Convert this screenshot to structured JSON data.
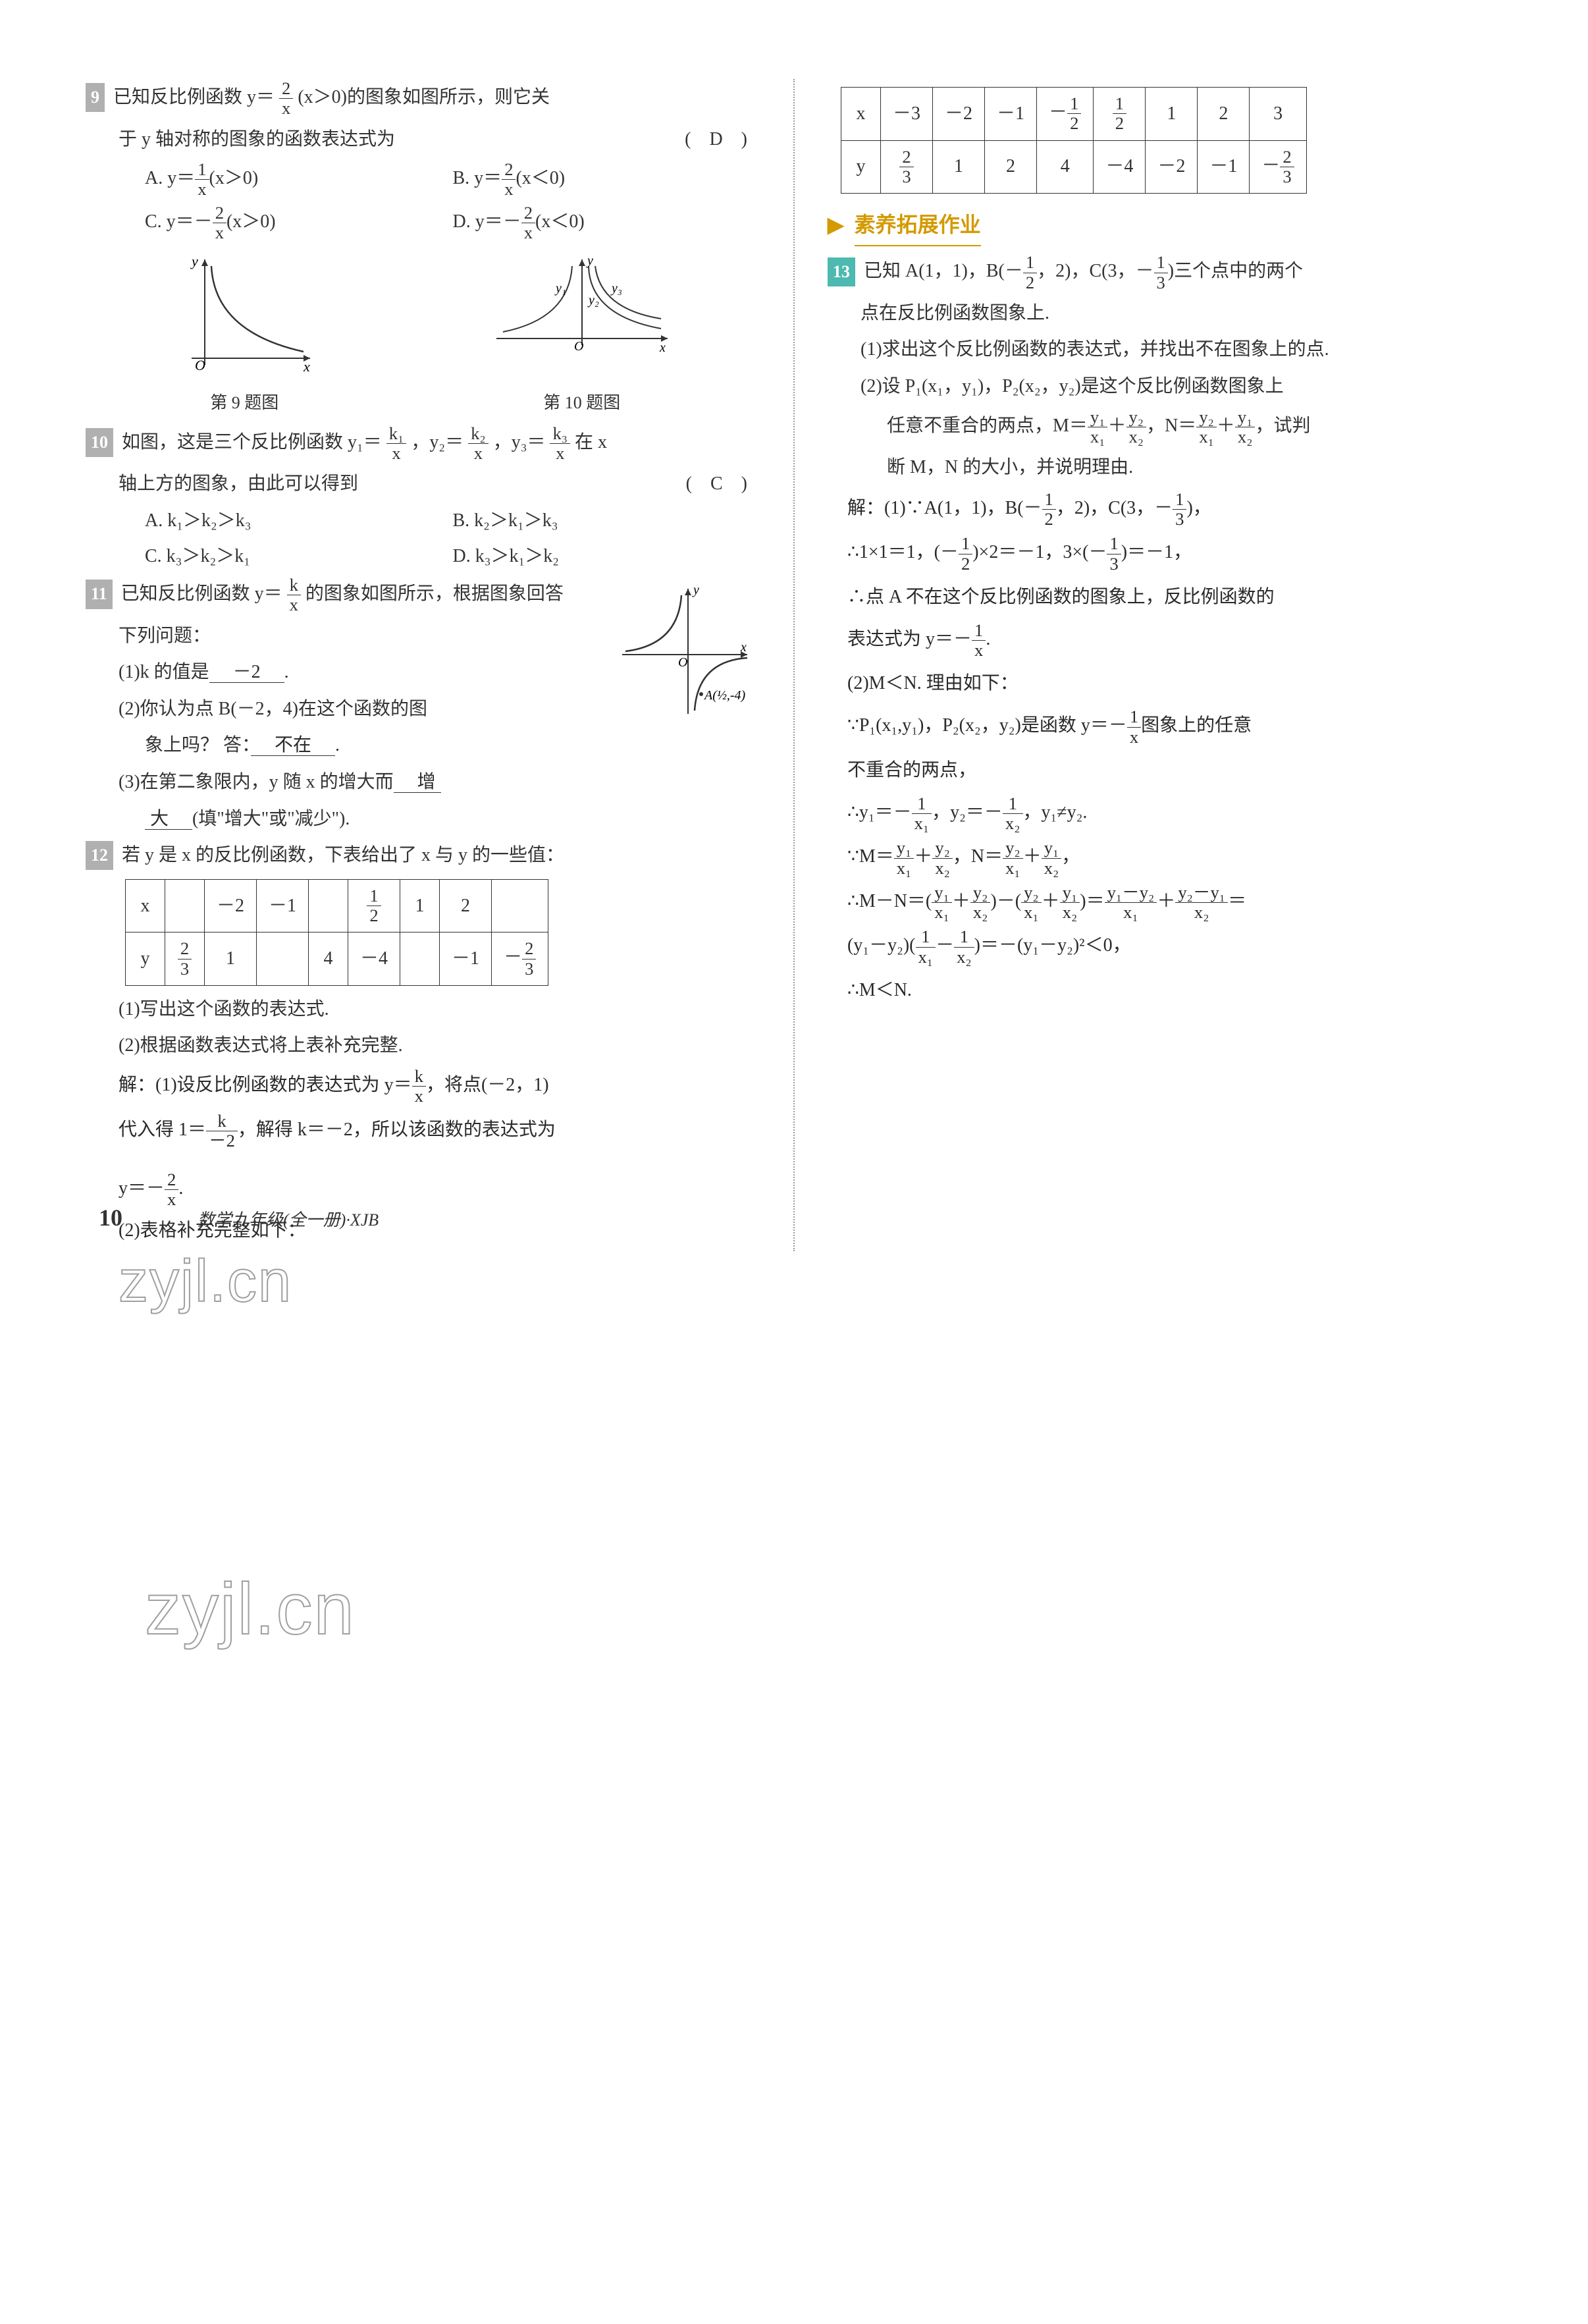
{
  "left": {
    "q9": {
      "num": "9",
      "text1": "已知反比例函数 y＝",
      "frac1": {
        "n": "2",
        "d": "x"
      },
      "text2": "(x＞0)的图象如图所示，则它关",
      "text3": "于 y 轴对称的图象的函数表达式为",
      "ans": "(　D　)",
      "opts": [
        {
          "l": "A. y＝",
          "f": {
            "n": "1",
            "d": "x"
          },
          "t": "(x＞0)"
        },
        {
          "l": "B. y＝",
          "f": {
            "n": "2",
            "d": "x"
          },
          "t": "(x＜0)"
        },
        {
          "l": "C. y＝－",
          "f": {
            "n": "2",
            "d": "x"
          },
          "t": "(x＞0)"
        },
        {
          "l": "D. y＝－",
          "f": {
            "n": "2",
            "d": "x"
          },
          "t": "(x＜0)"
        }
      ],
      "figcap1": "第 9 题图",
      "figcap2": "第 10 题图"
    },
    "q10": {
      "num": "10",
      "text1": "如图，这是三个反比例函数 y₁＝",
      "f1": {
        "n": "k₁",
        "d": "x"
      },
      "text2": "，y₂＝",
      "f2": {
        "n": "k₂",
        "d": "x"
      },
      "text3": "，y₃＝",
      "f3": {
        "n": "k₃",
        "d": "x"
      },
      "text4": "在 x",
      "text5": "轴上方的图象，由此可以得到",
      "ans": "(　C　)",
      "opts": [
        "A. k₁＞k₂＞k₃",
        "B. k₂＞k₁＞k₃",
        "C. k₃＞k₂＞k₁",
        "D. k₃＞k₁＞k₂"
      ]
    },
    "q11": {
      "num": "11",
      "text1": "已知反比例函数 y＝",
      "f": {
        "n": "k",
        "d": "x"
      },
      "text2": "的图象如图所示，根据图象回答",
      "text3": "下列问题：",
      "sub1a": "(1)k 的值是",
      "sub1ans": "　－2　",
      "sub1b": ".",
      "sub2a": "(2)你认为点 B(－2，4)在这个函数的图",
      "sub2b": "象上吗？ 答：",
      "sub2ans": "　不在　",
      "sub2c": ".",
      "sub3a": "(3)在第二象限内，y 随 x 的增大而",
      "sub3ans1": "　增",
      "sub3ans2": "大　",
      "sub3b": "(填\"增大\"或\"减少\").",
      "figlabel": "A(½,-4)"
    },
    "q12": {
      "num": "12",
      "text1": "若 y 是 x 的反比例函数，下表给出了 x 与 y 的一些值：",
      "table": {
        "r1": [
          "x",
          "",
          "－2",
          "－1",
          "",
          "",
          "1",
          "2",
          ""
        ],
        "r1f": [
          null,
          null,
          null,
          null,
          null,
          {
            "n": "1",
            "d": "2"
          },
          null,
          null,
          null
        ],
        "r2": [
          "y",
          "",
          "1",
          "",
          "4",
          "－4",
          "",
          "－1",
          ""
        ],
        "r2f": [
          null,
          {
            "n": "2",
            "d": "3"
          },
          null,
          null,
          null,
          null,
          null,
          null,
          {
            "neg": true,
            "n": "2",
            "d": "3"
          }
        ],
        "r2filled": [
          false,
          true,
          false,
          false,
          false,
          false,
          false,
          false,
          true
        ]
      },
      "sub1": "(1)写出这个函数的表达式.",
      "sub2": "(2)根据函数表达式将上表补充完整.",
      "sol1a": "解：(1)设反比例函数的表达式为 y＝",
      "sol1f": {
        "n": "k",
        "d": "x"
      },
      "sol1b": "，将点(－2，1)",
      "sol2a": "代入得 1＝",
      "sol2f": {
        "n": "k",
        "d": "－2"
      },
      "sol2b": "，解得 k＝－2，所以该函数的表达式为",
      "sol3a": "y＝",
      "sol3f": {
        "n": "2",
        "d": "x"
      },
      "sol3neg": "－",
      "sol3b": ".",
      "sol4": "(2)表格补充完整如下："
    }
  },
  "rightTable": {
    "r1v": [
      "x",
      "－3",
      "－2",
      "－1",
      "",
      "",
      "1",
      "2",
      "3"
    ],
    "r1f": [
      null,
      null,
      null,
      null,
      {
        "neg": true,
        "n": "1",
        "d": "2"
      },
      {
        "n": "1",
        "d": "2"
      },
      null,
      null,
      null
    ],
    "r2v": [
      "y",
      "",
      "1",
      "2",
      "4",
      "－4",
      "－2",
      "－1",
      ""
    ],
    "r2f": [
      null,
      {
        "n": "2",
        "d": "3"
      },
      null,
      null,
      null,
      null,
      null,
      null,
      {
        "neg": true,
        "n": "2",
        "d": "3"
      }
    ]
  },
  "section": "素养拓展作业",
  "q13": {
    "num": "13",
    "t1": "已知 A(1，1)，B(－",
    "f1": {
      "n": "1",
      "d": "2"
    },
    "t2": "，2)，C(3，－",
    "f2": {
      "n": "1",
      "d": "3"
    },
    "t3": ")三个点中的两个",
    "t4": "点在反比例函数图象上.",
    "s1": "(1)求出这个反比例函数的表达式，并找出不在图象上的点.",
    "s2a": "(2)设 P₁(x₁，y₁)，P₂(x₂，y₂)是这个反比例函数图象上",
    "s2b": "任意不重合的两点，M＝",
    "mf1": {
      "n": "y₁",
      "d": "x₁"
    },
    "s2c": "＋",
    "mf2": {
      "n": "y₂",
      "d": "x₂"
    },
    "s2d": "，N＝",
    "mf3": {
      "n": "y₂",
      "d": "x₁"
    },
    "s2e": "＋",
    "mf4": {
      "n": "y₁",
      "d": "x₂"
    },
    "s2f": "，试判",
    "s2g": "断 M，N 的大小，并说明理由.",
    "sol": [
      "解：(1)∵A(1，1)，B(－{F:1/2}，2)，C(3，－{F:1/3})，",
      "∴1×1＝1，(－{F:1/2})×2＝－1，3×(－{F:1/3})＝－1，",
      "∴点 A 不在这个反比例函数的图象上，反比例函数的",
      "表达式为 y＝－{F:1/x}.",
      "(2)M＜N. 理由如下：",
      "∵P₁(x₁,y₁)，P₂(x₂，y₂)是函数 y＝－{F:1/x}图象上的任意",
      "不重合的两点，",
      "∴y₁＝－{F:1/x₁}，y₂＝－{F:1/x₂}，y₁≠y₂.",
      "∵M＝{F:y₁/x₁}＋{F:y₂/x₂}，N＝{F:y₂/x₁}＋{F:y₁/x₂}，",
      "∴M－N＝({F:y₁/x₁}＋{F:y₂/x₂})－({F:y₂/x₁}＋{F:y₁/x₂})＝{F:y₁－y₂/x₁}＋{F:y₂－y₁/x₂}＝",
      "(y₁－y₂)({F:1/x₁}－{F:1/x₂})＝－(y₁－y₂)²＜0，",
      "∴M＜N."
    ]
  },
  "watermark": "zyjl.cn",
  "pageNum": "10",
  "footer": "数学九年级(全一册)·XJB"
}
